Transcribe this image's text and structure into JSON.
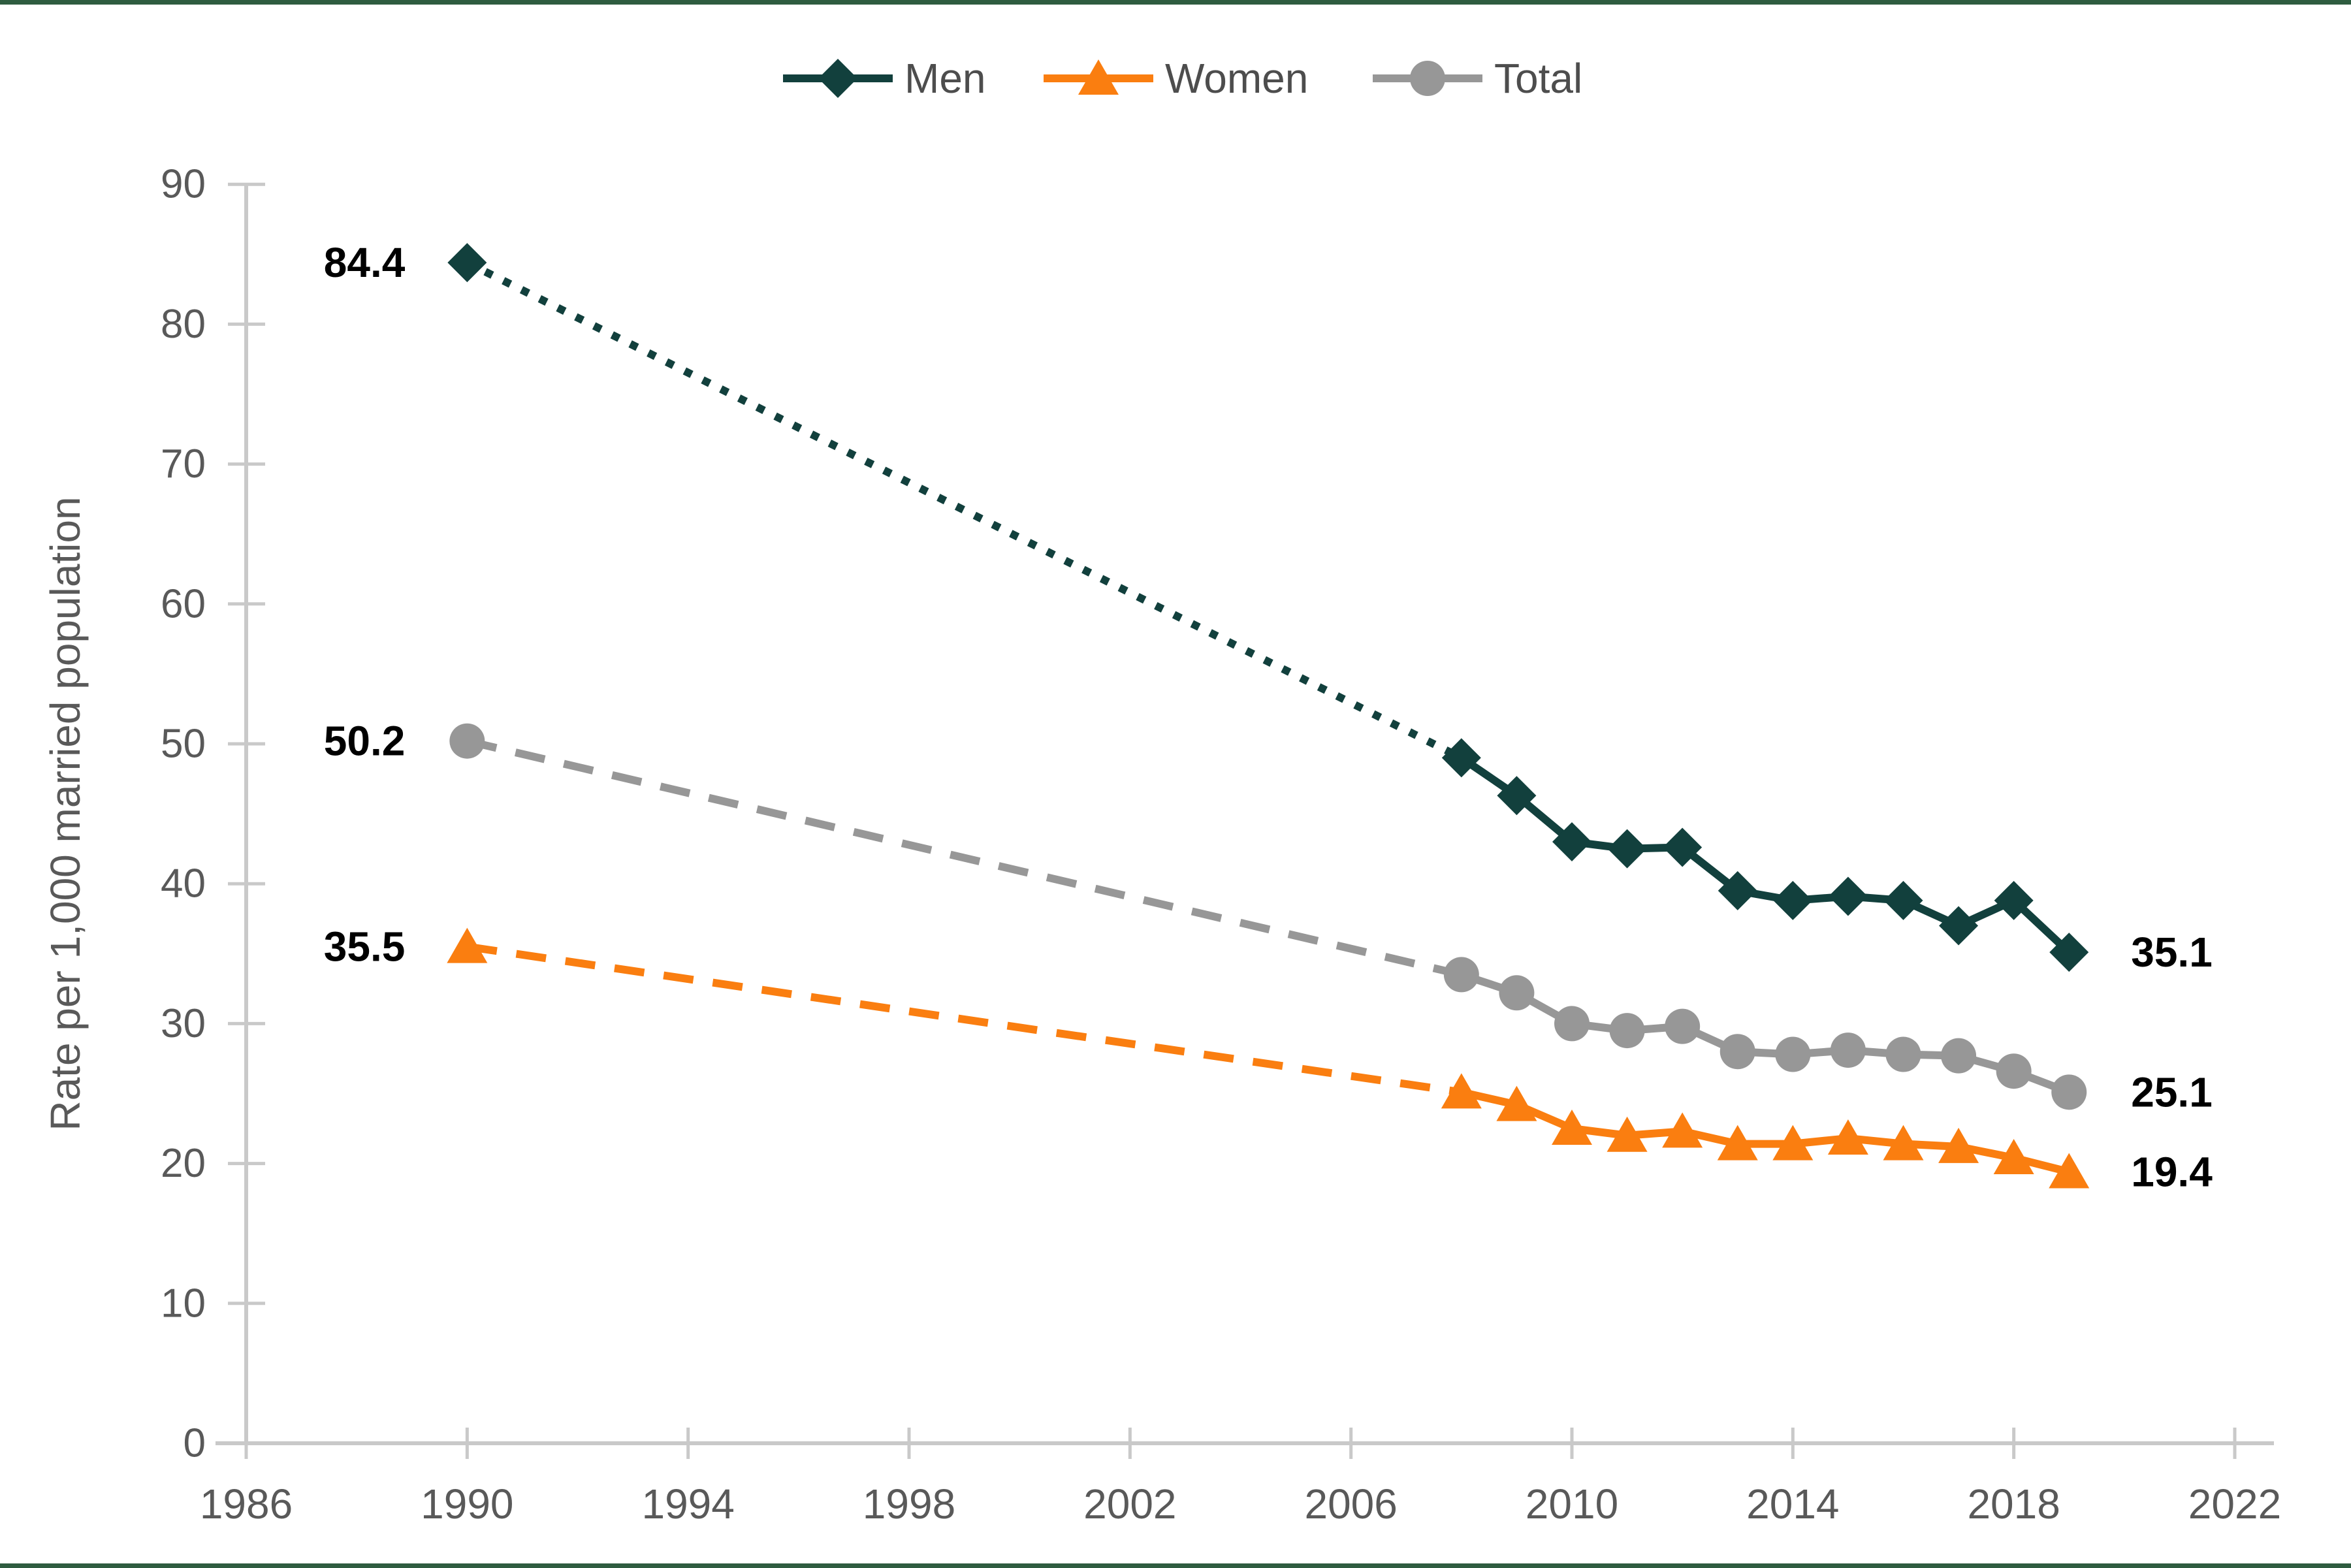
{
  "figure": {
    "background": "#ffffff",
    "accent_bar_color": "#2e5c40",
    "axis_color": "#c9c9c9",
    "tick_label_color": "#595959",
    "axis_title_color": "#595959",
    "legend_text_color": "#4d4d4d",
    "data_label_color": "#000000"
  },
  "chart_data": {
    "type": "line",
    "title": "",
    "xlabel": "",
    "ylabel": "Rate per 1,000 married population",
    "xlim": [
      1986,
      2022
    ],
    "ylim": [
      0,
      90
    ],
    "x_ticks": [
      1986,
      1990,
      1994,
      1998,
      2002,
      2006,
      2010,
      2014,
      2018,
      2022
    ],
    "y_ticks": [
      0,
      10,
      20,
      30,
      40,
      50,
      60,
      70,
      80,
      90
    ],
    "grid": false,
    "legend_position": "top-center",
    "gap_note": "No data 1991-2007; 1990 point joined to 2008 with a dotted/dashed interpolation segment",
    "years_observed": [
      1990,
      2008,
      2009,
      2010,
      2011,
      2012,
      2013,
      2014,
      2015,
      2016,
      2017,
      2018,
      2019
    ],
    "series": [
      {
        "name": "Men",
        "color": "#12403d",
        "marker": "diamond",
        "gap_line_style": "dotted",
        "values": [
          84.4,
          49.0,
          46.3,
          43.0,
          42.5,
          42.6,
          39.5,
          38.8,
          39.1,
          38.8,
          37.0,
          38.8,
          35.1
        ],
        "start_label": "84.4",
        "end_label": "35.1"
      },
      {
        "name": "Women",
        "color": "#fa7e10",
        "marker": "triangle",
        "gap_line_style": "dashed",
        "values": [
          35.5,
          25.1,
          24.2,
          22.5,
          22.0,
          22.3,
          21.4,
          21.4,
          21.8,
          21.4,
          21.2,
          20.4,
          19.4
        ],
        "start_label": "35.5",
        "end_label": "19.4"
      },
      {
        "name": "Total",
        "color": "#979797",
        "marker": "circle",
        "gap_line_style": "dashed",
        "values": [
          50.2,
          33.5,
          32.2,
          30.0,
          29.5,
          29.8,
          28.0,
          27.8,
          28.1,
          27.8,
          27.7,
          26.6,
          25.1
        ],
        "start_label": "50.2",
        "end_label": "25.1"
      }
    ],
    "legend_entries": [
      "Men",
      "Women",
      "Total"
    ]
  }
}
